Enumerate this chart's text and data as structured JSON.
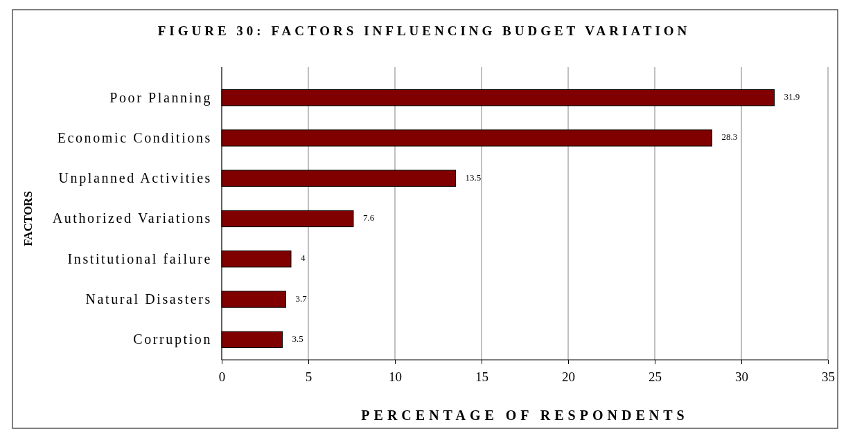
{
  "chart_data": {
    "type": "bar",
    "orientation": "horizontal",
    "title": "FIGURE 30: FACTORS INFLUENCING BUDGET VARIATION",
    "xlabel": "PERCENTAGE OF RESPONDENTS",
    "ylabel": "FACTORS",
    "categories": [
      "Poor Planning",
      "Economic Conditions",
      "Unplanned Activities",
      "Authorized Variations",
      "Institutional failure",
      "Natural Disasters",
      "Corruption"
    ],
    "values": [
      31.9,
      28.3,
      13.5,
      7.6,
      4,
      3.7,
      3.5
    ],
    "value_labels": [
      "31.9",
      "28.3",
      "13.5",
      "7.6",
      "4",
      "3.7",
      "3.5"
    ],
    "color": "#800000",
    "xlim": [
      0,
      35
    ],
    "xticks": [
      0,
      5,
      10,
      15,
      20,
      25,
      30,
      35
    ],
    "grid": "x"
  }
}
